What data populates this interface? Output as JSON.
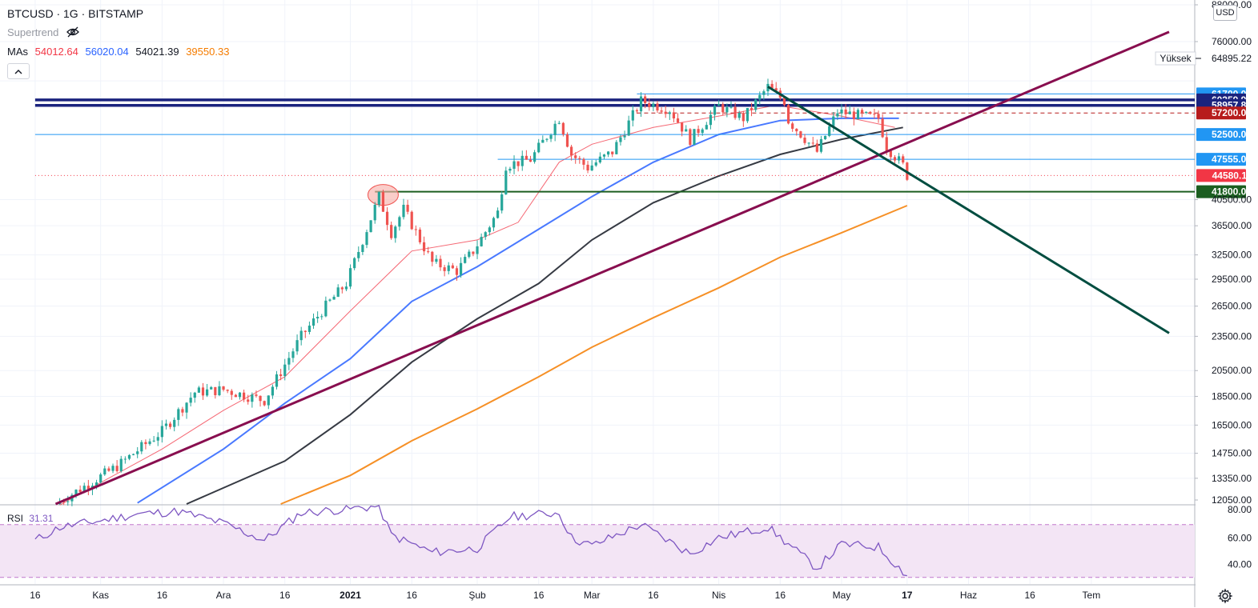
{
  "header": {
    "symbol": "BTCUSD",
    "separator": "·",
    "interval": "1G",
    "exchange": "BITSTAMP",
    "supertrend_label": "Supertrend",
    "mas_label": "MAs",
    "ma_values": [
      "54012.64",
      "56020.04",
      "54021.39",
      "39550.33"
    ],
    "ma_colors": [
      "#f23645",
      "#2962ff",
      "#131722",
      "#f57c00"
    ],
    "currency": "USD",
    "collapse_icon": "chevron-up-icon"
  },
  "rsi": {
    "label": "RSI",
    "value": "31.31",
    "upper": 70,
    "lower": 30
  },
  "price_axis": {
    "ticks": [
      "88000.00",
      "76000.00",
      "64895.22",
      "61700.00",
      "60259.93",
      "58957.87",
      "57200.00",
      "52500.00",
      "47555.00",
      "44580.11",
      "41800.00",
      "40500.00",
      "36500.00",
      "32500.00",
      "29500.00",
      "26500.00",
      "23500.00",
      "20500.00",
      "18500.00",
      "16500.00",
      "14750.00",
      "13350.00",
      "12050.00"
    ],
    "high_label": "Yüksek",
    "high_value": "64895.22"
  },
  "rsi_axis": {
    "ticks": [
      "80.00",
      "60.00",
      "40.00"
    ]
  },
  "time_axis": {
    "ticks": [
      "16",
      "Kas",
      "16",
      "Ara",
      "16",
      "2021",
      "16",
      "Şub",
      "16",
      "Mar",
      "16",
      "Nis",
      "16",
      "May",
      "17",
      "Haz",
      "16",
      "Tem"
    ]
  },
  "colors": {
    "up": "#26a69a",
    "down": "#ef5350",
    "trend_up": "#880e4f",
    "trend_down": "#004d40",
    "level_blue": "#2196f3",
    "level_navy": "#1a237e",
    "level_red": "#b71c1c",
    "level_green": "#1b5e20",
    "rsi_line": "#7e57c2",
    "rsi_band": "#f3e5f5"
  },
  "chart_data": {
    "type": "candlestick",
    "symbol": "BTCUSD",
    "interval": "1G",
    "exchange": "BITSTAMP",
    "y_scale": "log",
    "ylim": [
      12050,
      88000
    ],
    "x_range": [
      "2020-10-16",
      "2021-07-20"
    ],
    "close_trend": [
      [
        "2020-10-21",
        12050
      ],
      [
        "2020-11-05",
        14000
      ],
      [
        "2020-11-16",
        16100
      ],
      [
        "2020-11-24",
        18800
      ],
      [
        "2020-12-01",
        19000
      ],
      [
        "2020-12-11",
        18200
      ],
      [
        "2020-12-16",
        21000
      ],
      [
        "2020-12-20",
        23500
      ],
      [
        "2020-12-26",
        26500
      ],
      [
        "2020-12-31",
        29000
      ],
      [
        "2021-01-03",
        33000
      ],
      [
        "2021-01-08",
        41000
      ],
      [
        "2021-01-11",
        35500
      ],
      [
        "2021-01-14",
        39000
      ],
      [
        "2021-01-21",
        31500
      ],
      [
        "2021-01-27",
        30500
      ],
      [
        "2021-01-31",
        33000
      ],
      [
        "2021-02-06",
        38500
      ],
      [
        "2021-02-08",
        46500
      ],
      [
        "2021-02-14",
        47500
      ],
      [
        "2021-02-21",
        56000
      ],
      [
        "2021-02-24",
        48500
      ],
      [
        "2021-02-28",
        46000
      ],
      [
        "2021-03-06",
        49000
      ],
      [
        "2021-03-13",
        60000
      ],
      [
        "2021-03-20",
        58000
      ],
      [
        "2021-03-25",
        51500
      ],
      [
        "2021-04-01",
        58800
      ],
      [
        "2021-04-07",
        56000
      ],
      [
        "2021-04-13",
        63500
      ],
      [
        "2021-04-17",
        60000
      ],
      [
        "2021-04-18",
        55500
      ],
      [
        "2021-04-25",
        49000
      ],
      [
        "2021-04-30",
        57500
      ],
      [
        "2021-05-06",
        56500
      ],
      [
        "2021-05-10",
        56000
      ],
      [
        "2021-05-12",
        50000
      ],
      [
        "2021-05-16",
        46400
      ],
      [
        "2021-05-17",
        44580
      ]
    ],
    "moving_averages": [
      {
        "value": 54012.64,
        "color": "#f23645",
        "points": [
          [
            "2020-10-22",
            12000
          ],
          [
            "2020-11-16",
            15000
          ],
          [
            "2020-12-01",
            17500
          ],
          [
            "2020-12-16",
            20000
          ],
          [
            "2021-01-01",
            26000
          ],
          [
            "2021-01-16",
            33000
          ],
          [
            "2021-02-01",
            34500
          ],
          [
            "2021-02-11",
            37000
          ],
          [
            "2021-02-21",
            47000
          ],
          [
            "2021-03-01",
            50500
          ],
          [
            "2021-03-16",
            54000
          ],
          [
            "2021-04-01",
            56500
          ],
          [
            "2021-04-15",
            59000
          ],
          [
            "2021-05-01",
            56500
          ],
          [
            "2021-05-14",
            54000
          ]
        ]
      },
      {
        "value": 56020.04,
        "color": "#2962ff",
        "points": [
          [
            "2020-11-10",
            12100
          ],
          [
            "2020-12-01",
            15000
          ],
          [
            "2020-12-16",
            18000
          ],
          [
            "2021-01-01",
            21500
          ],
          [
            "2021-01-16",
            27000
          ],
          [
            "2021-02-01",
            31000
          ],
          [
            "2021-02-16",
            36000
          ],
          [
            "2021-03-01",
            41000
          ],
          [
            "2021-03-16",
            47000
          ],
          [
            "2021-04-01",
            52500
          ],
          [
            "2021-04-16",
            55500
          ],
          [
            "2021-05-01",
            56000
          ],
          [
            "2021-05-15",
            56000
          ]
        ]
      },
      {
        "value": 54021.39,
        "color": "#131722",
        "points": [
          [
            "2020-11-22",
            12050
          ],
          [
            "2020-12-16",
            14300
          ],
          [
            "2021-01-01",
            17200
          ],
          [
            "2021-01-16",
            21200
          ],
          [
            "2021-02-01",
            25200
          ],
          [
            "2021-02-16",
            29000
          ],
          [
            "2021-03-01",
            34500
          ],
          [
            "2021-03-16",
            40000
          ],
          [
            "2021-04-01",
            44500
          ],
          [
            "2021-04-16",
            48500
          ],
          [
            "2021-05-01",
            51500
          ],
          [
            "2021-05-16",
            54000
          ]
        ]
      },
      {
        "value": 39550.33,
        "color": "#f57c00",
        "points": [
          [
            "2020-12-15",
            12050
          ],
          [
            "2021-01-01",
            13500
          ],
          [
            "2021-01-16",
            15500
          ],
          [
            "2021-02-01",
            17600
          ],
          [
            "2021-02-16",
            20000
          ],
          [
            "2021-03-01",
            22500
          ],
          [
            "2021-03-16",
            25300
          ],
          [
            "2021-04-01",
            28500
          ],
          [
            "2021-04-16",
            32200
          ],
          [
            "2021-05-01",
            35500
          ],
          [
            "2021-05-17",
            39550
          ]
        ]
      }
    ],
    "horizontal_levels": [
      {
        "price": 61700,
        "label": "61700.00",
        "color": "#2196f3",
        "style": "solid",
        "from": "2021-03-12"
      },
      {
        "price": 60259.93,
        "label": "60259.93",
        "color": "#1a237e",
        "style": "thick",
        "from": "2020-10-16"
      },
      {
        "price": 58957.87,
        "label": "58957.87",
        "color": "#1a237e",
        "style": "thick",
        "from": "2020-10-16"
      },
      {
        "price": 57200,
        "label": "57200.00",
        "color": "#b71c1c",
        "style": "dashed",
        "from": "2021-03-12"
      },
      {
        "price": 52500,
        "label": "52500.00",
        "color": "#2196f3",
        "style": "solid",
        "from": "2020-10-16"
      },
      {
        "price": 47555,
        "label": "47555.00",
        "color": "#2196f3",
        "style": "solid",
        "from": "2021-02-06"
      },
      {
        "price": 44580.11,
        "label": "44580.11",
        "color": "#f23645",
        "style": "dotted",
        "from": "2020-10-16"
      },
      {
        "price": 41800,
        "label": "41800.00",
        "color": "#1b5e20",
        "style": "solid",
        "from": "2021-01-07"
      }
    ],
    "trendlines": [
      {
        "color": "#880e4f",
        "from": [
          "2020-10-21",
          12050
        ],
        "to": [
          "2021-07-20",
          79000
        ]
      },
      {
        "color": "#004d40",
        "from": [
          "2021-04-13",
          63500
        ],
        "to": [
          "2021-07-20",
          23800
        ]
      }
    ],
    "highlight_circle": {
      "date": "2021-01-09",
      "price": 41800
    },
    "rsi": {
      "name": "RSI",
      "latest": 31.31,
      "levels": [
        70,
        30
      ],
      "ylim": [
        25,
        85
      ],
      "points": [
        [
          "2020-10-16",
          58
        ],
        [
          "2020-10-22",
          68
        ],
        [
          "2020-11-01",
          73
        ],
        [
          "2020-11-10",
          78
        ],
        [
          "2020-11-20",
          80
        ],
        [
          "2020-12-01",
          71
        ],
        [
          "2020-12-11",
          58
        ],
        [
          "2020-12-20",
          79
        ],
        [
          "2021-01-01",
          82
        ],
        [
          "2021-01-08",
          84
        ],
        [
          "2021-01-11",
          62
        ],
        [
          "2021-01-21",
          49
        ],
        [
          "2021-02-01",
          52
        ],
        [
          "2021-02-09",
          76
        ],
        [
          "2021-02-21",
          79
        ],
        [
          "2021-02-24",
          60
        ],
        [
          "2021-03-01",
          54
        ],
        [
          "2021-03-13",
          70
        ],
        [
          "2021-03-25",
          48
        ],
        [
          "2021-04-01",
          60
        ],
        [
          "2021-04-13",
          68
        ],
        [
          "2021-04-25",
          37
        ],
        [
          "2021-05-01",
          55
        ],
        [
          "2021-05-10",
          53
        ],
        [
          "2021-05-17",
          31.31
        ]
      ]
    }
  }
}
